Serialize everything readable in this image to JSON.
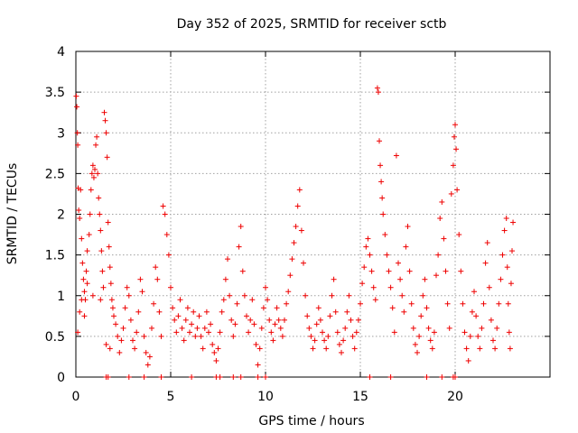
{
  "chart_data": {
    "type": "scatter",
    "title": "Day 352 of 2025, SRMTID for receiver sctb",
    "xlabel": "GPS time / hours",
    "ylabel": "SRMTID / TECUs",
    "xlim": [
      0,
      25
    ],
    "ylim": [
      0,
      4
    ],
    "x_ticks": [
      0,
      5,
      10,
      15,
      20
    ],
    "x_tick_labels": [
      "0",
      "5",
      "10",
      "15",
      "20"
    ],
    "y_ticks": [
      0,
      0.5,
      1,
      1.5,
      2,
      2.5,
      3,
      3.5,
      4
    ],
    "y_tick_labels": [
      "0",
      "0.5",
      "1",
      "1.5",
      "2",
      "2.5",
      "3",
      "3.5",
      "4"
    ],
    "grid": true,
    "series": [
      {
        "name": "SRMTID",
        "color": "#ee0000",
        "marker": "plus",
        "points": [
          [
            0.02,
            3.45
          ],
          [
            0.05,
            3.32
          ],
          [
            0.08,
            3.0
          ],
          [
            0.1,
            2.85
          ],
          [
            0.12,
            2.32
          ],
          [
            0.15,
            2.05
          ],
          [
            0.2,
            1.95
          ],
          [
            0.25,
            2.3
          ],
          [
            0.3,
            1.7
          ],
          [
            0.35,
            1.4
          ],
          [
            0.4,
            1.2
          ],
          [
            0.45,
            1.05
          ],
          [
            0.5,
            0.95
          ],
          [
            0.55,
            1.3
          ],
          [
            0.6,
            1.55
          ],
          [
            0.7,
            1.75
          ],
          [
            0.75,
            2.0
          ],
          [
            0.8,
            2.3
          ],
          [
            0.85,
            2.5
          ],
          [
            0.9,
            2.6
          ],
          [
            0.95,
            2.45
          ],
          [
            1.0,
            2.55
          ],
          [
            1.05,
            2.85
          ],
          [
            1.1,
            2.95
          ],
          [
            1.15,
            2.5
          ],
          [
            1.2,
            2.2
          ],
          [
            1.25,
            2.0
          ],
          [
            1.3,
            1.8
          ],
          [
            1.35,
            1.55
          ],
          [
            1.4,
            1.3
          ],
          [
            1.45,
            1.1
          ],
          [
            1.5,
            3.25
          ],
          [
            1.55,
            3.15
          ],
          [
            1.6,
            3.0
          ],
          [
            1.65,
            2.7
          ],
          [
            1.7,
            1.9
          ],
          [
            1.75,
            1.6
          ],
          [
            1.8,
            1.35
          ],
          [
            1.85,
            1.15
          ],
          [
            1.9,
            0.95
          ],
          [
            1.95,
            0.85
          ],
          [
            2.0,
            0.75
          ],
          [
            0.1,
            0.55
          ],
          [
            0.2,
            0.8
          ],
          [
            0.3,
            0.95
          ],
          [
            0.45,
            0.75
          ],
          [
            0.6,
            1.15
          ],
          [
            0.9,
            1.0
          ],
          [
            1.3,
            0.95
          ],
          [
            1.6,
            0.4
          ],
          [
            1.8,
            0.35
          ],
          [
            2.1,
            0.65
          ],
          [
            2.2,
            0.5
          ],
          [
            2.3,
            0.3
          ],
          [
            2.4,
            0.45
          ],
          [
            2.5,
            0.6
          ],
          [
            2.6,
            0.85
          ],
          [
            2.7,
            1.1
          ],
          [
            2.8,
            1.0
          ],
          [
            2.9,
            0.7
          ],
          [
            3.0,
            0.45
          ],
          [
            3.1,
            0.35
          ],
          [
            3.2,
            0.55
          ],
          [
            3.3,
            0.8
          ],
          [
            3.4,
            1.2
          ],
          [
            3.5,
            1.05
          ],
          [
            3.6,
            0.5
          ],
          [
            3.7,
            0.3
          ],
          [
            3.8,
            0.15
          ],
          [
            3.9,
            0.25
          ],
          [
            4.0,
            0.6
          ],
          [
            4.1,
            0.9
          ],
          [
            4.2,
            1.35
          ],
          [
            4.3,
            1.2
          ],
          [
            4.4,
            0.8
          ],
          [
            4.5,
            0.5
          ],
          [
            4.6,
            2.1
          ],
          [
            4.7,
            2.0
          ],
          [
            4.8,
            1.75
          ],
          [
            4.9,
            1.5
          ],
          [
            5.0,
            1.1
          ],
          [
            5.1,
            0.85
          ],
          [
            5.2,
            0.7
          ],
          [
            5.3,
            0.55
          ],
          [
            5.4,
            0.75
          ],
          [
            5.5,
            0.95
          ],
          [
            5.6,
            0.6
          ],
          [
            5.7,
            0.45
          ],
          [
            5.8,
            0.7
          ],
          [
            5.9,
            0.85
          ],
          [
            6.0,
            0.55
          ],
          [
            6.1,
            0.65
          ],
          [
            6.2,
            0.8
          ],
          [
            6.3,
            0.5
          ],
          [
            6.4,
            0.6
          ],
          [
            6.5,
            0.75
          ],
          [
            6.6,
            0.5
          ],
          [
            6.7,
            0.35
          ],
          [
            6.8,
            0.6
          ],
          [
            6.9,
            0.8
          ],
          [
            7.0,
            0.55
          ],
          [
            7.1,
            0.65
          ],
          [
            7.2,
            0.4
          ],
          [
            7.3,
            0.3
          ],
          [
            7.4,
            0.2
          ],
          [
            7.5,
            0.35
          ],
          [
            7.6,
            0.55
          ],
          [
            7.7,
            0.8
          ],
          [
            7.8,
            0.95
          ],
          [
            7.9,
            1.2
          ],
          [
            8.0,
            1.45
          ],
          [
            8.1,
            1.0
          ],
          [
            8.2,
            0.7
          ],
          [
            8.3,
            0.5
          ],
          [
            8.4,
            0.65
          ],
          [
            8.5,
            0.9
          ],
          [
            8.6,
            1.6
          ],
          [
            8.7,
            1.85
          ],
          [
            8.8,
            1.3
          ],
          [
            8.9,
            1.0
          ],
          [
            9.0,
            0.75
          ],
          [
            9.1,
            0.55
          ],
          [
            9.2,
            0.7
          ],
          [
            9.3,
            0.95
          ],
          [
            9.4,
            0.65
          ],
          [
            9.5,
            0.4
          ],
          [
            9.6,
            0.15
          ],
          [
            9.7,
            0.35
          ],
          [
            9.8,
            0.6
          ],
          [
            9.9,
            0.85
          ],
          [
            10.0,
            1.1
          ],
          [
            10.1,
            0.95
          ],
          [
            10.2,
            0.7
          ],
          [
            10.3,
            0.55
          ],
          [
            10.4,
            0.45
          ],
          [
            10.5,
            0.65
          ],
          [
            10.6,
            0.85
          ],
          [
            10.7,
            0.7
          ],
          [
            10.8,
            0.6
          ],
          [
            10.9,
            0.5
          ],
          [
            11.0,
            0.7
          ],
          [
            11.1,
            0.9
          ],
          [
            11.2,
            1.05
          ],
          [
            11.3,
            1.25
          ],
          [
            11.4,
            1.45
          ],
          [
            11.5,
            1.65
          ],
          [
            11.6,
            1.85
          ],
          [
            11.7,
            2.1
          ],
          [
            11.8,
            2.3
          ],
          [
            11.9,
            1.8
          ],
          [
            12.0,
            1.4
          ],
          [
            12.1,
            1.0
          ],
          [
            12.2,
            0.75
          ],
          [
            12.3,
            0.6
          ],
          [
            12.4,
            0.5
          ],
          [
            12.5,
            0.35
          ],
          [
            12.6,
            0.45
          ],
          [
            12.7,
            0.65
          ],
          [
            12.8,
            0.85
          ],
          [
            12.9,
            0.7
          ],
          [
            13.0,
            0.55
          ],
          [
            13.1,
            0.45
          ],
          [
            13.2,
            0.35
          ],
          [
            13.3,
            0.5
          ],
          [
            13.4,
            0.75
          ],
          [
            13.5,
            1.0
          ],
          [
            13.6,
            1.2
          ],
          [
            13.7,
            0.8
          ],
          [
            13.8,
            0.55
          ],
          [
            13.9,
            0.4
          ],
          [
            14.0,
            0.3
          ],
          [
            14.1,
            0.45
          ],
          [
            14.2,
            0.6
          ],
          [
            14.3,
            0.8
          ],
          [
            14.4,
            1.0
          ],
          [
            14.5,
            0.7
          ],
          [
            14.6,
            0.5
          ],
          [
            14.7,
            0.35
          ],
          [
            14.8,
            0.55
          ],
          [
            14.9,
            0.7
          ],
          [
            15.0,
            0.9
          ],
          [
            15.1,
            1.15
          ],
          [
            15.2,
            1.35
          ],
          [
            15.3,
            1.6
          ],
          [
            15.4,
            1.7
          ],
          [
            15.5,
            1.5
          ],
          [
            15.6,
            1.3
          ],
          [
            15.7,
            1.1
          ],
          [
            15.8,
            0.95
          ],
          [
            15.9,
            3.55
          ],
          [
            15.95,
            3.5
          ],
          [
            16.0,
            2.9
          ],
          [
            16.05,
            2.6
          ],
          [
            16.1,
            2.4
          ],
          [
            16.15,
            2.2
          ],
          [
            16.2,
            2.0
          ],
          [
            16.3,
            1.75
          ],
          [
            16.4,
            1.5
          ],
          [
            16.5,
            1.3
          ],
          [
            16.6,
            1.1
          ],
          [
            16.7,
            0.85
          ],
          [
            16.8,
            0.55
          ],
          [
            16.9,
            2.72
          ],
          [
            17.0,
            1.4
          ],
          [
            17.1,
            1.2
          ],
          [
            17.2,
            1.0
          ],
          [
            17.3,
            0.8
          ],
          [
            17.4,
            1.6
          ],
          [
            17.5,
            1.85
          ],
          [
            17.6,
            1.3
          ],
          [
            17.7,
            0.9
          ],
          [
            17.8,
            0.6
          ],
          [
            17.9,
            0.4
          ],
          [
            18.0,
            0.3
          ],
          [
            18.1,
            0.5
          ],
          [
            18.2,
            0.75
          ],
          [
            18.3,
            1.0
          ],
          [
            18.4,
            1.2
          ],
          [
            18.5,
            0.85
          ],
          [
            18.6,
            0.6
          ],
          [
            18.7,
            0.45
          ],
          [
            18.8,
            0.35
          ],
          [
            18.9,
            0.55
          ],
          [
            19.0,
            1.25
          ],
          [
            19.1,
            1.5
          ],
          [
            19.2,
            1.95
          ],
          [
            19.3,
            2.15
          ],
          [
            19.4,
            1.7
          ],
          [
            19.5,
            1.3
          ],
          [
            19.6,
            0.9
          ],
          [
            19.7,
            0.6
          ],
          [
            19.8,
            2.25
          ],
          [
            19.9,
            2.6
          ],
          [
            19.95,
            2.95
          ],
          [
            20.0,
            3.1
          ],
          [
            20.05,
            2.8
          ],
          [
            20.1,
            2.3
          ],
          [
            20.2,
            1.75
          ],
          [
            20.3,
            1.3
          ],
          [
            20.4,
            0.9
          ],
          [
            20.5,
            0.55
          ],
          [
            20.6,
            0.35
          ],
          [
            20.7,
            0.2
          ],
          [
            20.8,
            0.5
          ],
          [
            20.9,
            0.8
          ],
          [
            21.0,
            1.05
          ],
          [
            21.1,
            0.75
          ],
          [
            21.2,
            0.5
          ],
          [
            21.3,
            0.35
          ],
          [
            21.4,
            0.6
          ],
          [
            21.5,
            0.9
          ],
          [
            21.6,
            1.4
          ],
          [
            21.7,
            1.65
          ],
          [
            21.8,
            1.1
          ],
          [
            21.9,
            0.7
          ],
          [
            22.0,
            0.45
          ],
          [
            22.1,
            0.35
          ],
          [
            22.2,
            0.6
          ],
          [
            22.3,
            0.9
          ],
          [
            22.4,
            1.2
          ],
          [
            22.5,
            1.5
          ],
          [
            22.6,
            1.8
          ],
          [
            22.7,
            1.95
          ],
          [
            22.75,
            1.35
          ],
          [
            22.8,
            0.9
          ],
          [
            22.85,
            0.55
          ],
          [
            22.9,
            0.35
          ],
          [
            22.95,
            1.15
          ],
          [
            23.0,
            1.55
          ],
          [
            23.05,
            1.9
          ],
          [
            1.6,
            0.0
          ],
          [
            1.7,
            0.0
          ],
          [
            2.8,
            0.0
          ],
          [
            3.6,
            0.0
          ],
          [
            4.5,
            0.0
          ],
          [
            6.1,
            0.0
          ],
          [
            7.4,
            0.0
          ],
          [
            7.6,
            0.0
          ],
          [
            8.3,
            0.0
          ],
          [
            8.7,
            0.0
          ],
          [
            9.6,
            0.0
          ],
          [
            10.0,
            0.0
          ],
          [
            15.5,
            0.0
          ],
          [
            16.6,
            0.0
          ],
          [
            18.5,
            0.0
          ],
          [
            19.3,
            0.0
          ],
          [
            19.9,
            0.0
          ],
          [
            20.0,
            0.0
          ]
        ]
      }
    ]
  }
}
